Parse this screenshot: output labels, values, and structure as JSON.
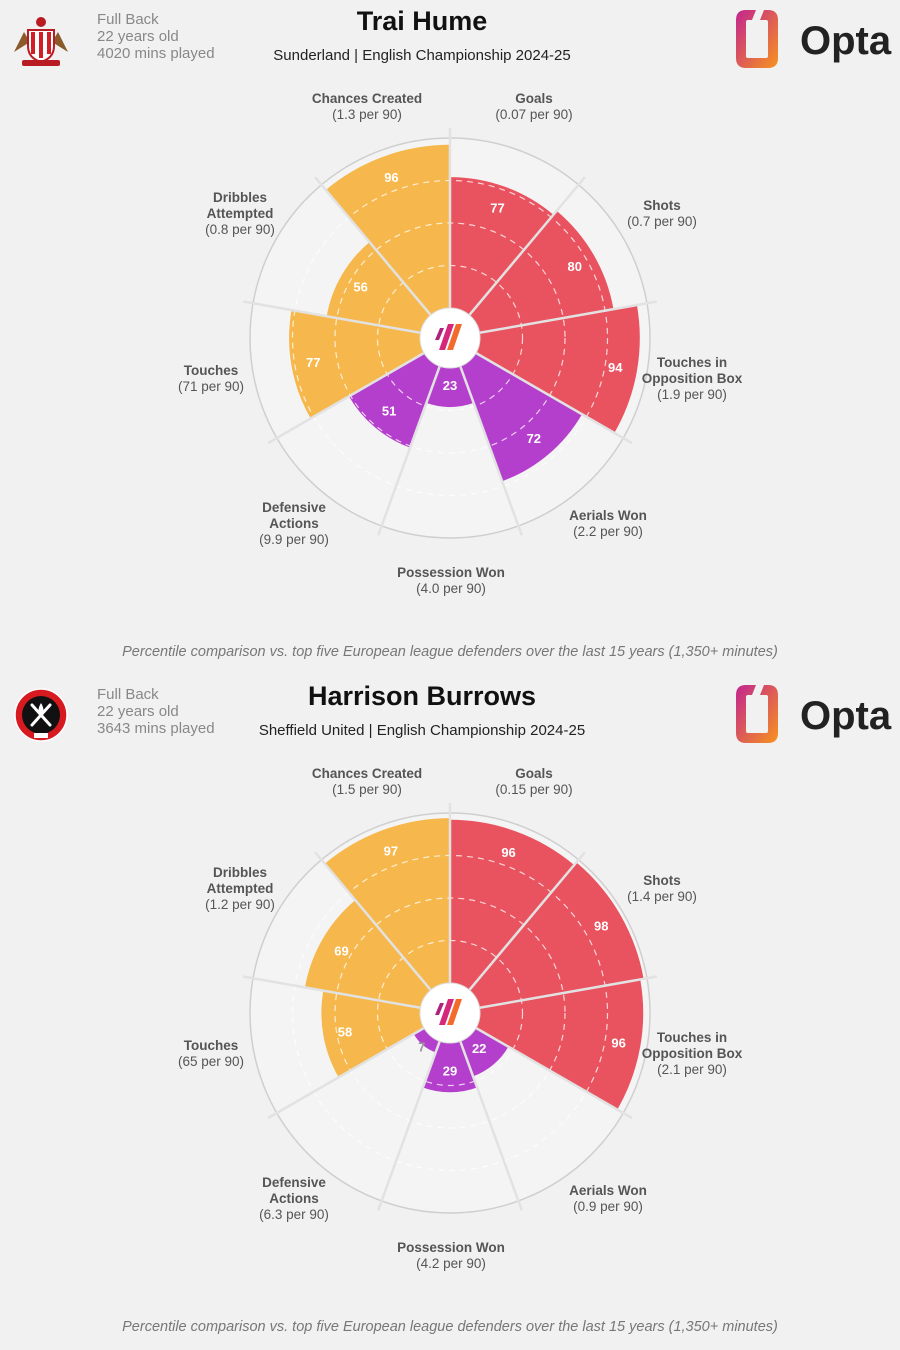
{
  "panels": [
    {
      "crest_icon": "sunderland-crest-icon",
      "position": "Full Back",
      "age": "22 years old",
      "minutes": "4020 mins played",
      "name": "Trai Hume",
      "subtitle": "Sunderland | English Championship 2024-25",
      "logo_text": "Opta",
      "footnote": "Percentile comparison vs. top five European league defenders over the last 15 years (1,350+ minutes)"
    },
    {
      "crest_icon": "sheffield-united-crest-icon",
      "position": "Full Back",
      "age": "22 years old",
      "minutes": "3643 mins played",
      "name": "Harrison Burrows",
      "subtitle": "Sheffield United | English Championship 2024-25",
      "logo_text": "Opta",
      "footnote": "Percentile comparison vs. top five European league defenders over the last 15 years (1,350+ minutes)"
    }
  ],
  "colors": {
    "attacking": "#e95360",
    "possession": "#b43fcc",
    "passing": "#f6b84c",
    "background": "#f1f1f1",
    "track": "#f4f4f4",
    "ring": "#cfcfcf"
  },
  "chart_data": [
    {
      "type": "radar",
      "scale": [
        0,
        100
      ],
      "categories": [
        {
          "name": "Goals",
          "per90": "(0.07 per 90)",
          "percentile": 77,
          "group": "attacking"
        },
        {
          "name": "Shots",
          "per90": "(0.7 per 90)",
          "percentile": 80,
          "group": "attacking"
        },
        {
          "name": "Touches in Opposition Box",
          "per90": "(1.9 per 90)",
          "percentile": 94,
          "group": "attacking"
        },
        {
          "name": "Aerials Won",
          "per90": "(2.2 per 90)",
          "percentile": 72,
          "group": "possession"
        },
        {
          "name": "Possession Won",
          "per90": "(4.0 per 90)",
          "percentile": 23,
          "group": "possession"
        },
        {
          "name": "Defensive Actions",
          "per90": "(9.9 per 90)",
          "percentile": 51,
          "group": "possession"
        },
        {
          "name": "Touches",
          "per90": "(71 per 90)",
          "percentile": 77,
          "group": "passing"
        },
        {
          "name": "Dribbles Attempted",
          "per90": "(0.8 per 90)",
          "percentile": 56,
          "group": "passing"
        },
        {
          "name": "Chances Created",
          "per90": "(1.3 per 90)",
          "percentile": 96,
          "group": "passing"
        }
      ]
    },
    {
      "type": "radar",
      "scale": [
        0,
        100
      ],
      "categories": [
        {
          "name": "Goals",
          "per90": "(0.15 per 90)",
          "percentile": 96,
          "group": "attacking"
        },
        {
          "name": "Shots",
          "per90": "(1.4 per 90)",
          "percentile": 98,
          "group": "attacking"
        },
        {
          "name": "Touches in Opposition Box",
          "per90": "(2.1 per 90)",
          "percentile": 96,
          "group": "attacking"
        },
        {
          "name": "Aerials Won",
          "per90": "(0.9 per 90)",
          "percentile": 22,
          "group": "possession"
        },
        {
          "name": "Possession Won",
          "per90": "(4.2 per 90)",
          "percentile": 29,
          "group": "possession"
        },
        {
          "name": "Defensive Actions",
          "per90": "(6.3 per 90)",
          "percentile": 7,
          "group": "possession"
        },
        {
          "name": "Touches",
          "per90": "(65 per 90)",
          "percentile": 58,
          "group": "passing"
        },
        {
          "name": "Dribbles Attempted",
          "per90": "(1.2 per 90)",
          "percentile": 69,
          "group": "passing"
        },
        {
          "name": "Chances Created",
          "per90": "(1.5 per 90)",
          "percentile": 97,
          "group": "passing"
        }
      ]
    }
  ]
}
